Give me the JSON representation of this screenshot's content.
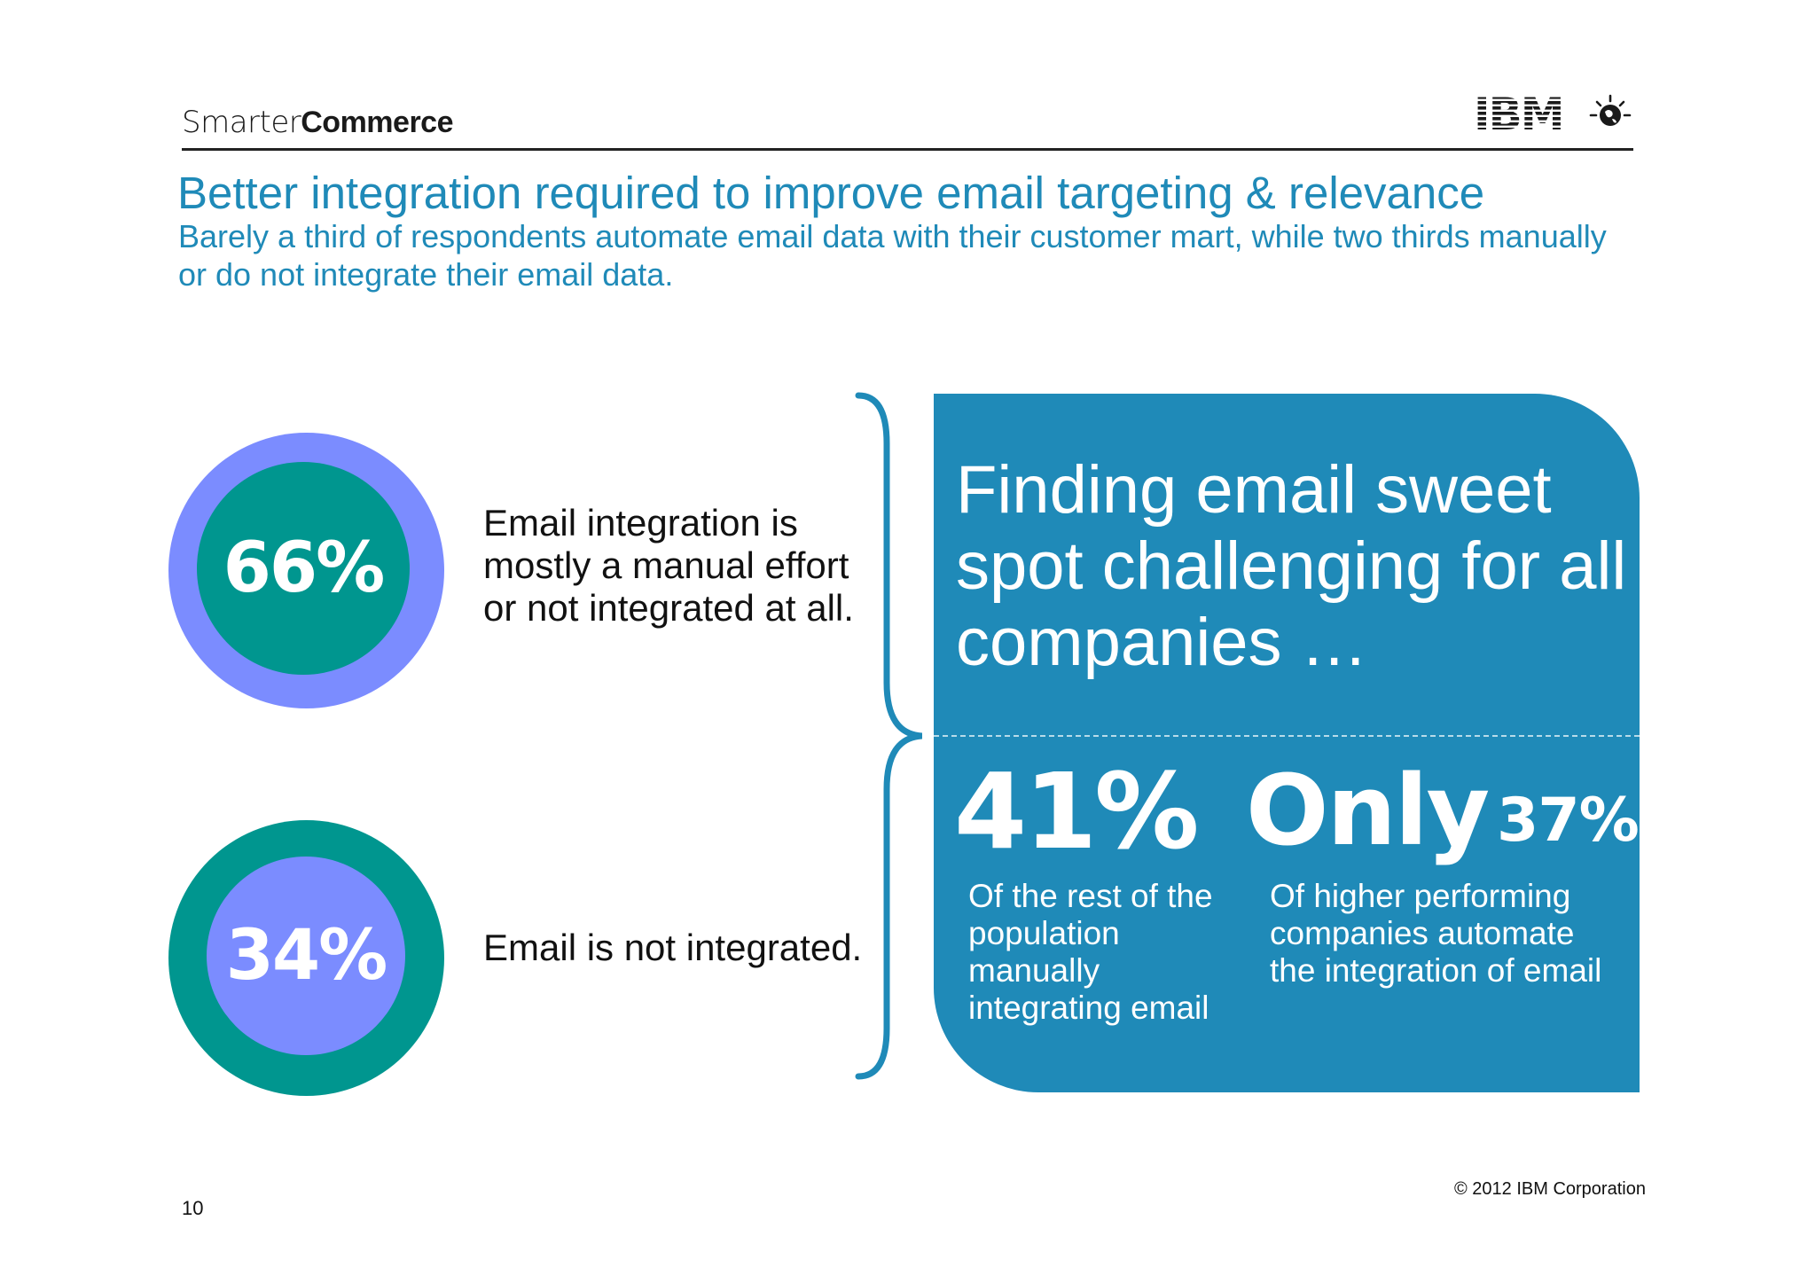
{
  "header": {
    "brand_light": "Smarter",
    "brand_bold": "Commerce",
    "logo_text": "IBM"
  },
  "slide": {
    "title": "Better integration required to improve email targeting & relevance",
    "subtitle": "Barely a third of respondents automate email data with their customer mart, while two thirds manually or do not integrate their email data."
  },
  "stats_left": [
    {
      "value": "66%",
      "description": "Email integration is mostly a manual effort or not integrated at all."
    },
    {
      "value": "34%",
      "description": "Email is not integrated."
    }
  ],
  "panel": {
    "headline": "Finding email sweet spot challenging for all companies …",
    "stat1_value": "41%",
    "stat1_desc": "Of the rest of the population manually integrating email",
    "stat2_prefix": "Only",
    "stat2_value": "37%",
    "stat2_desc": "Of higher performing companies automate the integration of email"
  },
  "footer": {
    "copyright": "© 2012 IBM Corporation",
    "page_number": "10"
  },
  "colors": {
    "accent_blue": "#1f8ab8",
    "teal": "#00968f",
    "periwinkle": "#7b8cff"
  }
}
